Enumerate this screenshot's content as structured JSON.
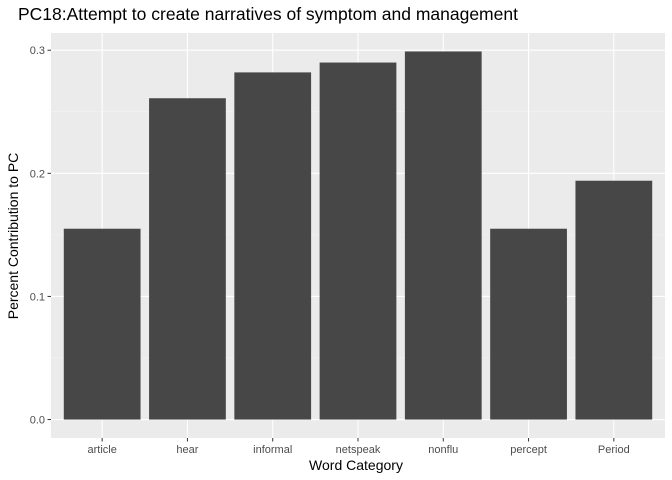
{
  "chart_data": {
    "type": "bar",
    "title": "PC18:Attempt to create narratives of symptom and management",
    "xlabel": "Word Category",
    "ylabel": "Percent Contribution to PC",
    "categories": [
      "article",
      "hear",
      "informal",
      "netspeak",
      "nonflu",
      "percept",
      "Period"
    ],
    "values": [
      0.155,
      0.261,
      0.282,
      0.29,
      0.299,
      0.155,
      0.194
    ],
    "ylim": [
      -0.015,
      0.314
    ],
    "yticks": [
      0.0,
      0.1,
      0.2,
      0.3
    ],
    "ytick_labels": [
      "0.0",
      "0.1",
      "0.2",
      "0.3"
    ],
    "grid": true,
    "colors": {
      "bar": "#474747",
      "panel": "#ebebeb",
      "grid_major": "#ffffff",
      "grid_minor": "#f5f5f5",
      "tick": "#333333"
    }
  }
}
